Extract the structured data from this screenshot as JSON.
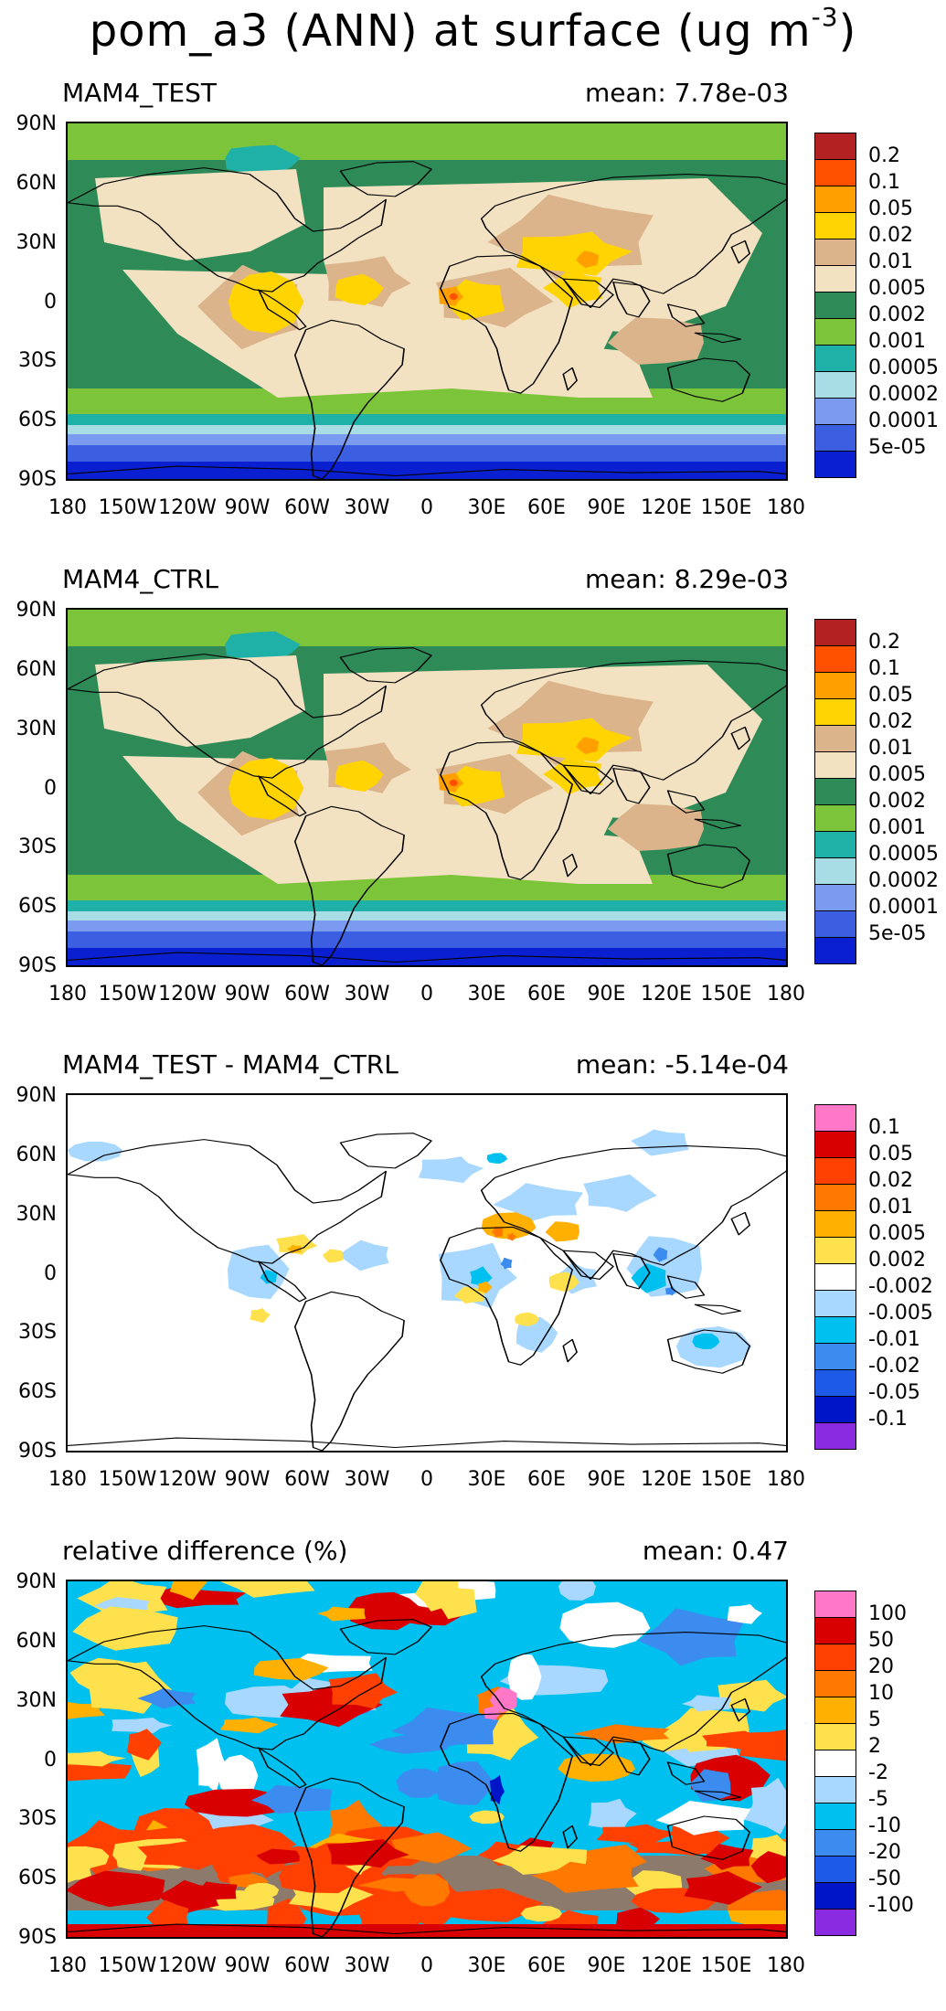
{
  "title": {
    "main": "pom_a3 (ANN) at surface (ug m",
    "exponent": "-3",
    "close": ")"
  },
  "colors": {
    "abs": [
      "#0a1fd0",
      "#3b5fe0",
      "#7a9bf0",
      "#a8dde6",
      "#1fb0a8",
      "#7cc43a",
      "#2e8b57",
      "#f3e2c1",
      "#dcb48c",
      "#ffd400",
      "#ffa000",
      "#ff5000",
      "#b22222"
    ],
    "diff": [
      "#8a2be2",
      "#0014c8",
      "#1e5ae8",
      "#3c8cf0",
      "#00c0f0",
      "#a8d8ff",
      "#ffffff",
      "#ffe14d",
      "#ffb000",
      "#ff7800",
      "#ff4000",
      "#d80000",
      "#ff78c8"
    ]
  },
  "axes": {
    "lat_ticks": [
      "90N",
      "60N",
      "30N",
      "0",
      "30S",
      "60S",
      "90S"
    ],
    "lon_ticks": [
      "180",
      "150W",
      "120W",
      "90W",
      "60W",
      "30W",
      "0",
      "30E",
      "60E",
      "90E",
      "120E",
      "150E",
      "180"
    ]
  },
  "panels": [
    {
      "title": "MAM4_TEST",
      "mean": "mean: 7.78e-03",
      "scheme": "abs",
      "levels": [
        "0.2",
        "0.1",
        "0.05",
        "0.02",
        "0.01",
        "0.005",
        "0.002",
        "0.001",
        "0.0005",
        "0.0002",
        "0.0001",
        "5e-05"
      ]
    },
    {
      "title": "MAM4_CTRL",
      "mean": "mean: 8.29e-03",
      "scheme": "abs",
      "levels": [
        "0.2",
        "0.1",
        "0.05",
        "0.02",
        "0.01",
        "0.005",
        "0.002",
        "0.001",
        "0.0005",
        "0.0002",
        "0.0001",
        "5e-05"
      ]
    },
    {
      "title": "MAM4_TEST - MAM4_CTRL",
      "mean": "mean: -5.14e-04",
      "scheme": "diff",
      "levels": [
        "0.1",
        "0.05",
        "0.02",
        "0.01",
        "0.005",
        "0.002",
        "-0.002",
        "-0.005",
        "-0.01",
        "-0.02",
        "-0.05",
        "-0.1"
      ]
    },
    {
      "title": "relative difference (%)",
      "mean": "mean:  0.47",
      "scheme": "diff",
      "levels": [
        "100",
        "50",
        "20",
        "10",
        "5",
        "2",
        "-2",
        "-5",
        "-10",
        "-20",
        "-50",
        "-100"
      ]
    }
  ],
  "chart_data": [
    {
      "type": "heatmap",
      "title": "MAM4_TEST",
      "subtitle": "mean: 7.78e-03",
      "xlim": [
        -180,
        180
      ],
      "ylim": [
        -90,
        90
      ],
      "units": "ug m-3",
      "contour_levels": [
        5e-05,
        0.0001,
        0.0002,
        0.0005,
        0.001,
        0.002,
        0.005,
        0.01,
        0.02,
        0.05,
        0.1,
        0.2
      ]
    },
    {
      "type": "heatmap",
      "title": "MAM4_CTRL",
      "subtitle": "mean: 8.29e-03",
      "xlim": [
        -180,
        180
      ],
      "ylim": [
        -90,
        90
      ],
      "units": "ug m-3",
      "contour_levels": [
        5e-05,
        0.0001,
        0.0002,
        0.0005,
        0.001,
        0.002,
        0.005,
        0.01,
        0.02,
        0.05,
        0.1,
        0.2
      ]
    },
    {
      "type": "heatmap",
      "title": "MAM4_TEST - MAM4_CTRL",
      "subtitle": "mean: -5.14e-04",
      "xlim": [
        -180,
        180
      ],
      "ylim": [
        -90,
        90
      ],
      "units": "ug m-3",
      "contour_levels": [
        -0.1,
        -0.05,
        -0.02,
        -0.01,
        -0.005,
        -0.002,
        0.002,
        0.005,
        0.01,
        0.02,
        0.05,
        0.1
      ]
    },
    {
      "type": "heatmap",
      "title": "relative difference (%)",
      "subtitle": "mean:  0.47",
      "xlim": [
        -180,
        180
      ],
      "ylim": [
        -90,
        90
      ],
      "units": "%",
      "contour_levels": [
        -100,
        -50,
        -20,
        -10,
        -5,
        -2,
        2,
        5,
        10,
        20,
        50,
        100
      ]
    }
  ]
}
